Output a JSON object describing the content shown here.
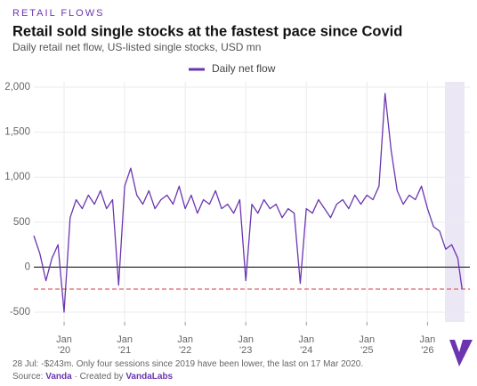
{
  "kicker": "RETAIL FLOWS",
  "note": "28 Jul: -$243m. Only four sessions since 2019 have been lower, the last on 17 Mar 2020.",
  "source": {
    "label": "Source:",
    "name": "Vanda",
    "sep": "· Created by",
    "creator": "VandaLabs"
  },
  "chart_data": {
    "type": "line",
    "title": "Retail sold single stocks at the fastest pace since Covid",
    "subtitle": "Daily retail net flow, US-listed single stocks, USD mn",
    "x": [
      2019.5,
      2019.6,
      2019.7,
      2019.8,
      2019.9,
      2020.0,
      2020.1,
      2020.2,
      2020.3,
      2020.4,
      2020.5,
      2020.6,
      2020.7,
      2020.8,
      2020.9,
      2021.0,
      2021.1,
      2021.2,
      2021.3,
      2021.4,
      2021.5,
      2021.6,
      2021.7,
      2021.8,
      2021.9,
      2022.0,
      2022.1,
      2022.2,
      2022.3,
      2022.4,
      2022.5,
      2022.6,
      2022.7,
      2022.8,
      2022.9,
      2023.0,
      2023.1,
      2023.2,
      2023.3,
      2023.4,
      2023.5,
      2023.6,
      2023.7,
      2023.8,
      2023.9,
      2024.0,
      2024.1,
      2024.2,
      2024.3,
      2024.4,
      2024.5,
      2024.6,
      2024.7,
      2024.8,
      2024.9,
      2025.0,
      2025.1,
      2025.2,
      2025.3,
      2025.4,
      2025.5,
      2025.6,
      2025.7,
      2025.8,
      2025.9,
      2026.0,
      2026.1,
      2026.2,
      2026.3,
      2026.4,
      2026.5,
      2026.57
    ],
    "series": [
      {
        "name": "Daily net flow",
        "color": "#6b35b0",
        "values": [
          350,
          150,
          -150,
          100,
          250,
          -500,
          550,
          750,
          650,
          800,
          700,
          850,
          650,
          750,
          -200,
          900,
          1100,
          800,
          700,
          850,
          650,
          750,
          800,
          700,
          900,
          650,
          800,
          600,
          750,
          700,
          850,
          650,
          700,
          600,
          750,
          -150,
          700,
          600,
          750,
          650,
          700,
          550,
          650,
          600,
          -180,
          650,
          600,
          750,
          650,
          550,
          700,
          750,
          650,
          800,
          700,
          800,
          750,
          900,
          1930,
          1300,
          850,
          700,
          800,
          750,
          900,
          650,
          450,
          400,
          200,
          250,
          100,
          -243
        ]
      }
    ],
    "xlim": [
      2019.5,
      2026.7
    ],
    "xticks": [
      {
        "value": 2020,
        "label": "Jan '20"
      },
      {
        "value": 2021,
        "label": "Jan '21"
      },
      {
        "value": 2022,
        "label": "Jan '22"
      },
      {
        "value": 2023,
        "label": "Jan '23"
      },
      {
        "value": 2024,
        "label": "Jan '24"
      },
      {
        "value": 2025,
        "label": "Jan '25"
      },
      {
        "value": 2026,
        "label": "Jan '26"
      }
    ],
    "ylim": [
      -500,
      2000
    ],
    "yticks": [
      -500,
      0,
      500,
      {
        "value": 1000,
        "label": "1,000"
      },
      {
        "value": 1500,
        "label": "1,500"
      },
      {
        "value": 2000,
        "label": "2,000"
      }
    ],
    "reference_line": {
      "value": -243,
      "color": "#e06666"
    },
    "grid": true,
    "legend": "top"
  }
}
